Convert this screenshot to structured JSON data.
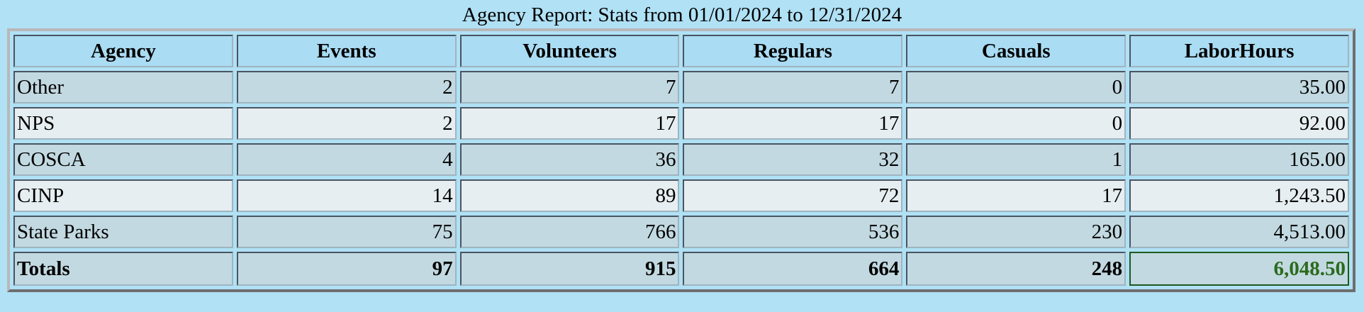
{
  "title": "Agency Report: Stats from 01/01/2024 to 12/31/2024",
  "table": {
    "header": [
      "Agency",
      "Events",
      "Volunteers",
      "Regulars",
      "Casuals",
      "LaborHours"
    ],
    "rows": [
      [
        "Other",
        "2",
        "7",
        "7",
        "0",
        "35.00"
      ],
      [
        "NPS",
        "2",
        "17",
        "17",
        "0",
        "92.00"
      ],
      [
        "COSCA",
        "4",
        "36",
        "32",
        "1",
        "165.00"
      ],
      [
        "CINP",
        "14",
        "89",
        "72",
        "17",
        "1,243.50"
      ],
      [
        "State Parks",
        "75",
        "766",
        "536",
        "230",
        "4,513.00"
      ]
    ],
    "totals": [
      "Totals",
      "97",
      "915",
      "664",
      "248",
      "6,048.50"
    ]
  }
}
